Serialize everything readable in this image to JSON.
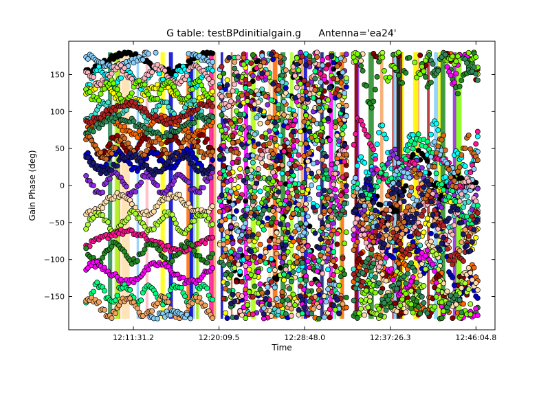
{
  "chart_data": {
    "type": "scatter",
    "title": "G table: testBPdinitialgain.g",
    "subtitle": "Antenna='ea24'",
    "xlabel": "Time",
    "ylabel": "Gain Phase (deg)",
    "x_is_time": true,
    "xlim": [
      "12:05:00",
      "12:48:00"
    ],
    "ylim": [
      -195,
      195
    ],
    "x_ticks": [
      "12:11:31.2",
      "12:20:09.5",
      "12:28:48.0",
      "12:37:26.3",
      "12:46:04.8"
    ],
    "y_ticks": [
      -150,
      -100,
      -50,
      0,
      50,
      100,
      150
    ],
    "grid": false,
    "legend": "none",
    "scans": [
      {
        "start": "12:06:45",
        "end": "12:19:30",
        "pattern": "bands"
      },
      {
        "start": "12:20:15",
        "end": "12:33:00",
        "pattern": "wrapping"
      },
      {
        "start": "12:33:45",
        "end": "12:46:15",
        "pattern": "drifting"
      }
    ],
    "series_colors": [
      "#000000",
      "#00ffff",
      "#ffff00",
      "#40e0d0",
      "#ff6600",
      "#8b0000",
      "#0000cd",
      "#8a2be2",
      "#ffdead",
      "#adff2f",
      "#ff1493",
      "#228b22",
      "#ff00ff",
      "#00ff7f",
      "#f4a460",
      "#87cefa",
      "#ffb6c1",
      "#7cfc00",
      "#b22222",
      "#2e8b57",
      "#d2691e",
      "#191970"
    ],
    "band_centers_deg": [
      170,
      150,
      125,
      100,
      78,
      55,
      30,
      5,
      -20,
      -45,
      -70,
      -95,
      -120,
      -145,
      -165
    ],
    "scatter_sample": [
      {
        "t": "12:07:00",
        "phase": 170
      },
      {
        "t": "12:08:30",
        "phase": 150
      },
      {
        "t": "12:10:00",
        "phase": 125
      },
      {
        "t": "12:11:30",
        "phase": 100
      },
      {
        "t": "12:13:00",
        "phase": 78
      },
      {
        "t": "12:14:30",
        "phase": 55
      },
      {
        "t": "12:16:00",
        "phase": 30
      },
      {
        "t": "12:17:30",
        "phase": 5
      },
      {
        "t": "12:19:00",
        "phase": -20
      },
      {
        "t": "12:22:00",
        "phase": 120
      },
      {
        "t": "12:25:00",
        "phase": -60
      },
      {
        "t": "12:28:00",
        "phase": 160
      },
      {
        "t": "12:31:00",
        "phase": -140
      },
      {
        "t": "12:35:00",
        "phase": -30
      },
      {
        "t": "12:38:00",
        "phase": 130
      },
      {
        "t": "12:41:00",
        "phase": 60
      },
      {
        "t": "12:44:00",
        "phase": -100
      }
    ]
  }
}
